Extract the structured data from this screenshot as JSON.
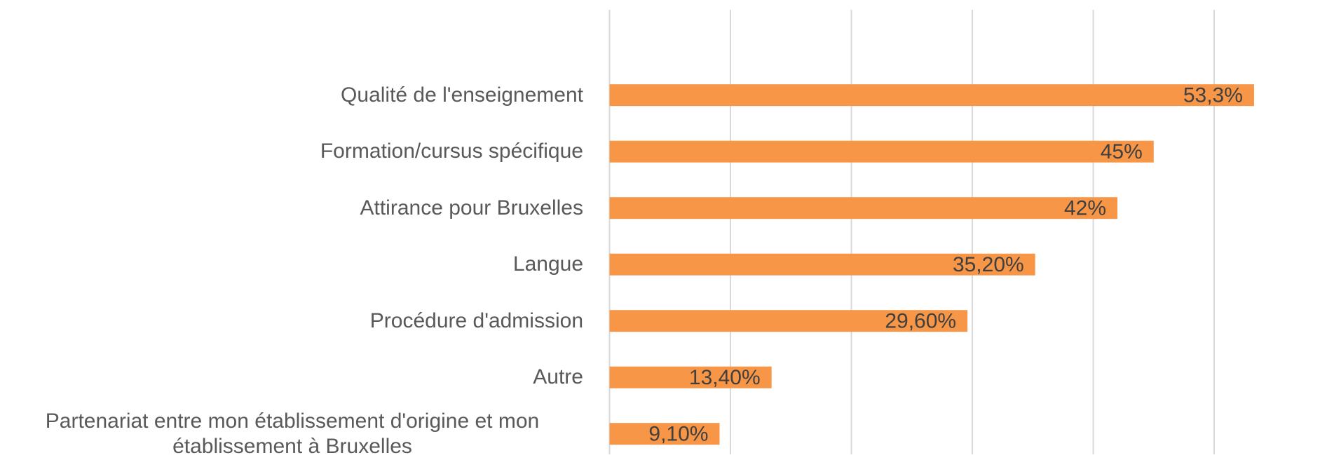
{
  "chart_data": {
    "type": "bar",
    "orientation": "horizontal",
    "categories": [
      "Qualité de l'enseignement",
      "Formation/cursus spécifique",
      "Attirance pour Bruxelles",
      "Langue",
      "Procédure d'admission",
      "Autre",
      "Partenariat entre mon établissement d'origine et mon établissement à Bruxelles"
    ],
    "values": [
      53.3,
      45,
      42,
      35.2,
      29.6,
      13.4,
      9.1
    ],
    "value_labels": [
      "53,3%",
      "45%",
      "42%",
      "35,20%",
      "29,60%",
      "13,40%",
      "9,10%"
    ],
    "color": "#f79646",
    "xlim": [
      0,
      55
    ],
    "xticks": [
      0,
      10,
      20,
      30,
      40,
      50
    ],
    "tick_labels": false,
    "grid": true
  }
}
